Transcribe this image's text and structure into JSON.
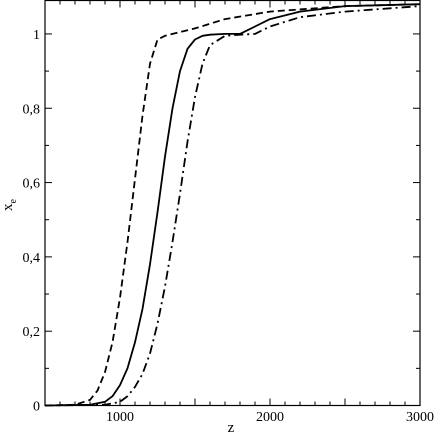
{
  "chart_data": {
    "type": "line",
    "title": "",
    "xlabel": "z",
    "ylabel": "x",
    "ylabel_subscript": "e",
    "xlim": [
      500,
      3000
    ],
    "ylim": [
      0,
      1.09
    ],
    "grid": false,
    "xticks": [
      1000,
      2000,
      3000
    ],
    "xtick_labels": [
      "1000",
      "2000",
      "3000"
    ],
    "yticks": [
      0,
      0.2,
      0.4,
      0.6,
      0.8,
      1
    ],
    "ytick_labels": [
      "0",
      "0,2",
      "0,4",
      "0,6",
      "0,8",
      "1"
    ],
    "series": [
      {
        "style": "dashed",
        "color": "#000000",
        "x": [
          500,
          700,
          800,
          850,
          900,
          950,
          1000,
          1050,
          1100,
          1150,
          1200,
          1250,
          1300,
          1350,
          1400,
          1500,
          1700,
          2000,
          2500,
          3000
        ],
        "y": [
          0.0,
          0.002,
          0.015,
          0.04,
          0.09,
          0.17,
          0.29,
          0.44,
          0.61,
          0.78,
          0.92,
          0.985,
          0.995,
          1.0,
          1.005,
          1.015,
          1.04,
          1.06,
          1.075,
          1.08
        ]
      },
      {
        "style": "solid",
        "color": "#000000",
        "x": [
          500,
          800,
          900,
          950,
          1000,
          1050,
          1100,
          1150,
          1200,
          1250,
          1300,
          1350,
          1400,
          1450,
          1500,
          1550,
          1600,
          1700,
          1800,
          1900,
          2000,
          2200,
          2500,
          3000
        ],
        "y": [
          0.0,
          0.002,
          0.01,
          0.025,
          0.055,
          0.1,
          0.17,
          0.26,
          0.38,
          0.52,
          0.67,
          0.8,
          0.9,
          0.96,
          0.985,
          0.995,
          0.998,
          1.0,
          1.0,
          1.02,
          1.04,
          1.06,
          1.075,
          1.08
        ]
      },
      {
        "style": "dashdot",
        "color": "#000000",
        "x": [
          500,
          900,
          1000,
          1050,
          1100,
          1150,
          1200,
          1250,
          1300,
          1350,
          1400,
          1450,
          1500,
          1550,
          1600,
          1700,
          1800,
          1900,
          2000,
          2200,
          2500,
          3000
        ],
        "y": [
          0.0,
          0.002,
          0.01,
          0.025,
          0.05,
          0.085,
          0.14,
          0.22,
          0.32,
          0.44,
          0.57,
          0.71,
          0.83,
          0.92,
          0.97,
          0.995,
          0.998,
          1.0,
          1.02,
          1.045,
          1.06,
          1.075
        ]
      }
    ]
  }
}
